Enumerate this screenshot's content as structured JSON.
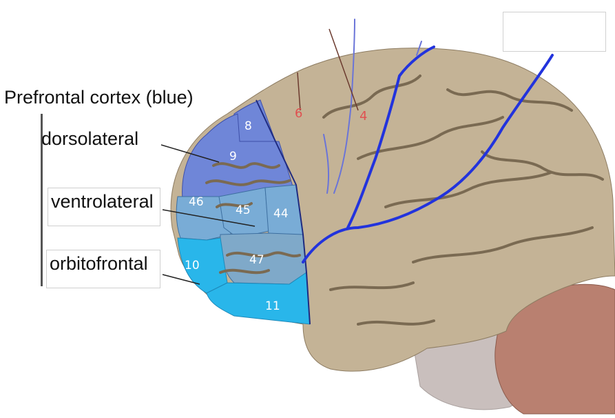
{
  "title": "Prefrontal cortex (blue)",
  "labels": {
    "dorsolateral": "dorsolateral",
    "ventrolateral": "ventrolateral",
    "orbitofrontal": "orbitofrontal"
  },
  "areas": [
    "8",
    "9",
    "46",
    "45",
    "44",
    "47",
    "10",
    "11"
  ],
  "motor_areas": [
    "6",
    "4"
  ],
  "colors": {
    "brain": "#c4b396",
    "sulcus": "#7a6a52",
    "dorsolateral": "#6f86d8",
    "ventrolateral": "#79acd6",
    "orbitofrontal": "#29b6ea",
    "area47": "#7fa9c9",
    "vessel": "#2233dd",
    "cerebellum": "#b98070",
    "brainstem": "#c9bfbd"
  }
}
